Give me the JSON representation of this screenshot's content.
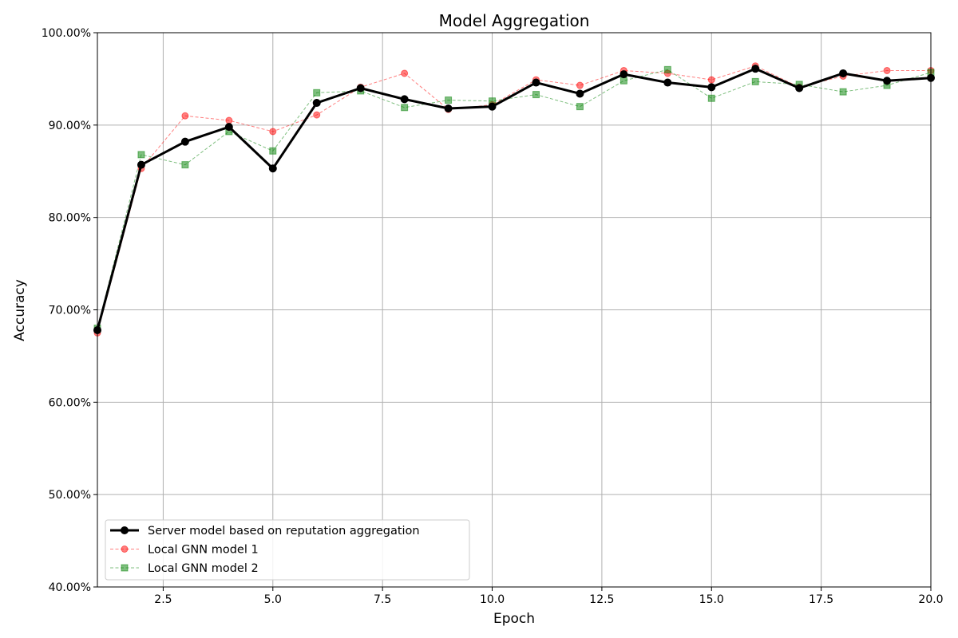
{
  "chart_data": {
    "type": "line",
    "title": "Model Aggregation",
    "xlabel": "Epoch",
    "ylabel": "Accuracy",
    "xlim": [
      1,
      20
    ],
    "ylim": [
      0.4,
      1.0
    ],
    "grid": true,
    "legend_position": "lower-left",
    "x_ticks": [
      {
        "value": 2.5,
        "label": "2.5"
      },
      {
        "value": 5.0,
        "label": "5.0"
      },
      {
        "value": 7.5,
        "label": "7.5"
      },
      {
        "value": 10.0,
        "label": "10.0"
      },
      {
        "value": 12.5,
        "label": "12.5"
      },
      {
        "value": 15.0,
        "label": "15.0"
      },
      {
        "value": 17.5,
        "label": "17.5"
      },
      {
        "value": 20.0,
        "label": "20.0"
      }
    ],
    "y_ticks": [
      {
        "value": 0.4,
        "label": "40.00%"
      },
      {
        "value": 0.5,
        "label": "50.00%"
      },
      {
        "value": 0.6,
        "label": "60.00%"
      },
      {
        "value": 0.7,
        "label": "70.00%"
      },
      {
        "value": 0.8,
        "label": "80.00%"
      },
      {
        "value": 0.9,
        "label": "90.00%"
      },
      {
        "value": 1.0,
        "label": "100.00%"
      }
    ],
    "x": [
      1,
      2,
      3,
      4,
      5,
      6,
      7,
      8,
      9,
      10,
      11,
      12,
      13,
      14,
      15,
      16,
      17,
      18,
      19,
      20
    ],
    "series": [
      {
        "name": "Server model based on reputation aggregation",
        "color": "#000000",
        "marker": "circle",
        "line_style": "solid",
        "values": [
          0.678,
          0.857,
          0.882,
          0.898,
          0.853,
          0.924,
          0.94,
          0.928,
          0.918,
          0.92,
          0.946,
          0.934,
          0.955,
          0.946,
          0.941,
          0.961,
          0.94,
          0.956,
          0.948,
          0.951
        ]
      },
      {
        "name": "Local GNN model 1",
        "color": "#ff0000",
        "marker": "circle",
        "line_style": "dashed",
        "values": [
          0.675,
          0.853,
          0.91,
          0.905,
          0.893,
          0.911,
          0.941,
          0.956,
          0.917,
          0.922,
          0.949,
          0.943,
          0.959,
          0.956,
          0.949,
          0.964,
          0.941,
          0.953,
          0.959,
          0.959
        ]
      },
      {
        "name": "Local GNN model 2",
        "color": "#008000",
        "marker": "square",
        "line_style": "dashed",
        "values": [
          0.68,
          0.868,
          0.857,
          0.893,
          0.872,
          0.935,
          0.937,
          0.919,
          0.927,
          0.926,
          0.933,
          0.92,
          0.948,
          0.96,
          0.929,
          0.947,
          0.944,
          0.936,
          0.943,
          0.957
        ]
      }
    ]
  }
}
